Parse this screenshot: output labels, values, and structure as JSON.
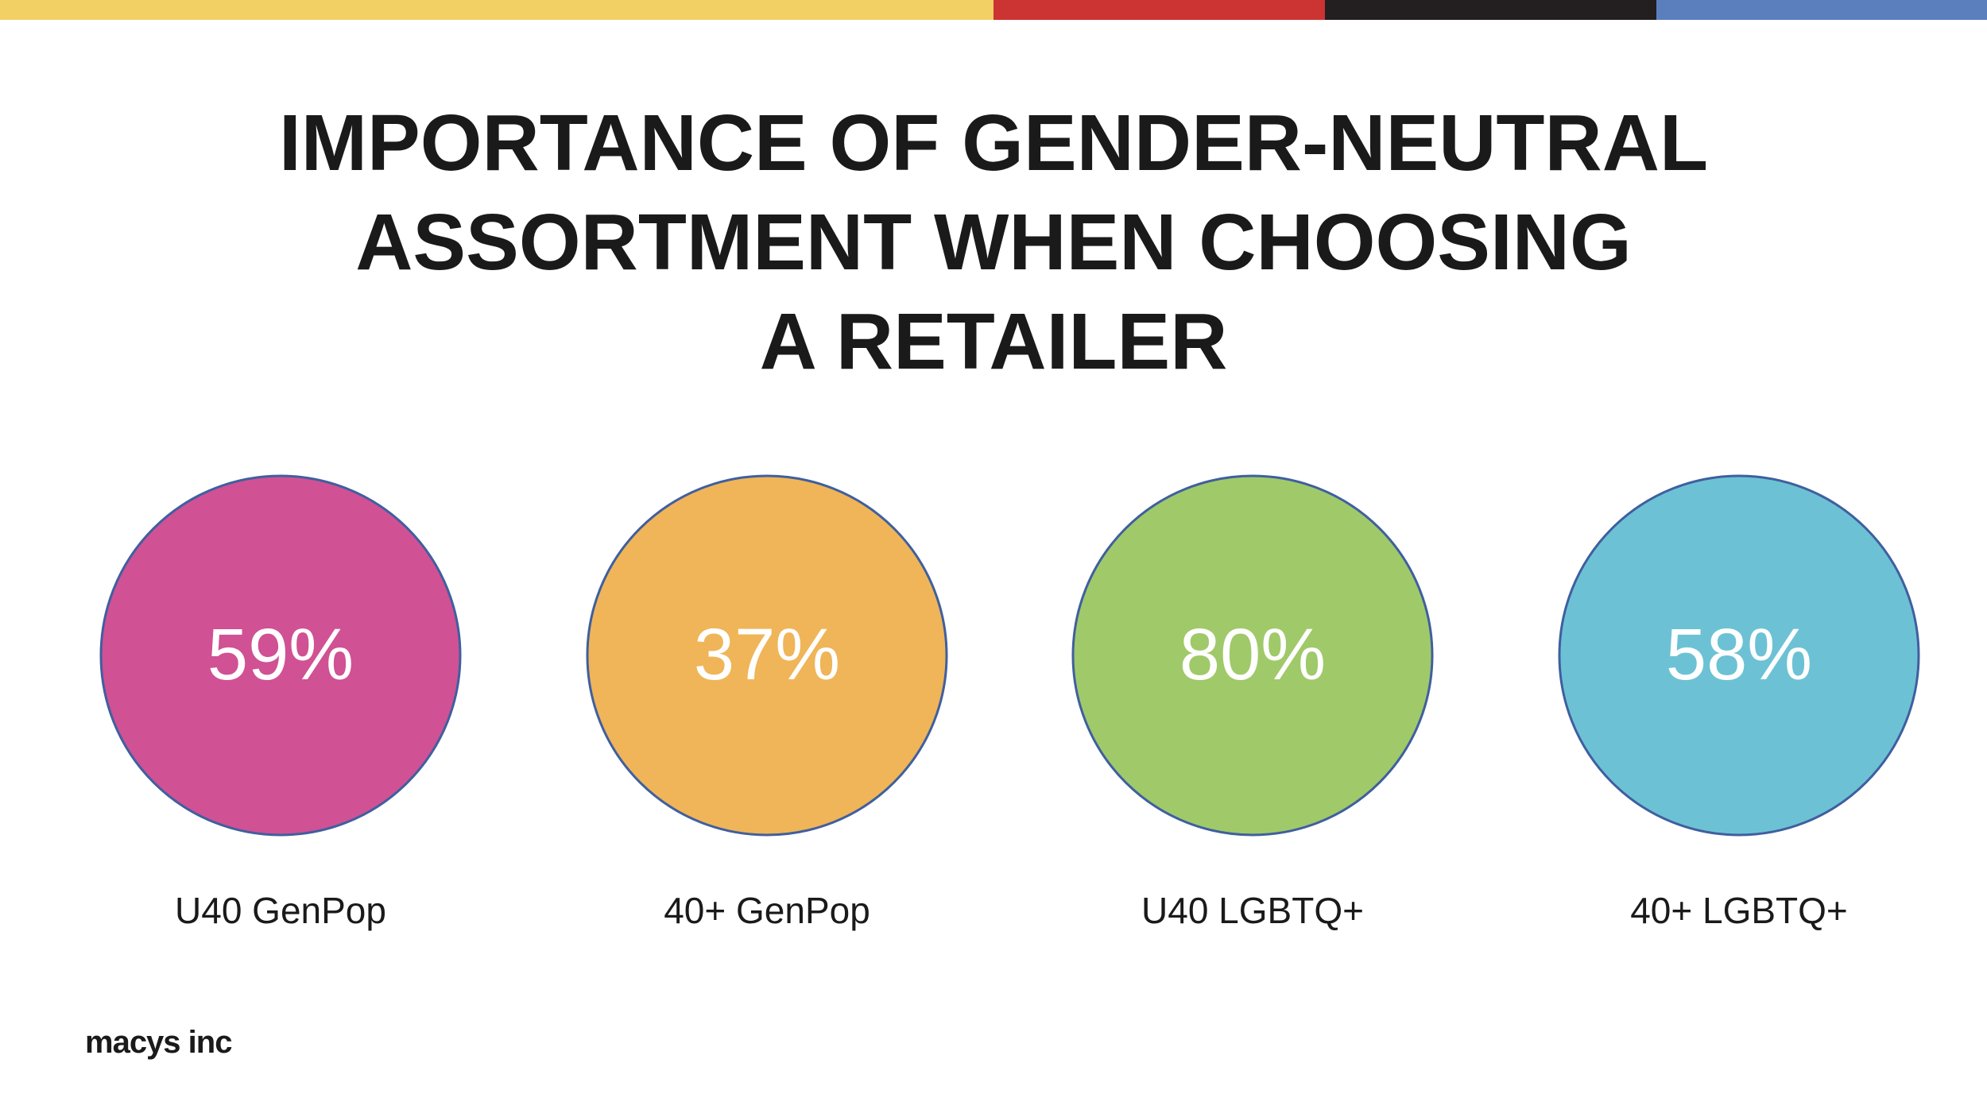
{
  "header": {
    "title": "IMPORTANCE OF GENDER-NEUTRAL\nASSORTMENT WHEN CHOOSING\nA RETAILER",
    "stripe_colors": [
      "#f3d064",
      "#cc3333",
      "#231f20",
      "#5b7fbd"
    ]
  },
  "chart_data": {
    "type": "bubble",
    "title": "IMPORTANCE OF GENDER-NEUTRAL ASSORTMENT WHEN CHOOSING A RETAILER",
    "categories": [
      "U40 GenPop",
      "40+ GenPop",
      "U40 LGBTQ+",
      "40+ LGBTQ+"
    ],
    "values": [
      59,
      37,
      80,
      58
    ],
    "value_labels": [
      "59%",
      "37%",
      "80%",
      "58%"
    ],
    "unit": "%",
    "colors": [
      "#d05194",
      "#efb558",
      "#a0c96a",
      "#6cc2d4"
    ],
    "outline_color": "#3f5f9f",
    "legend": "none",
    "grid": false
  },
  "footer": {
    "logo_text": "macys inc"
  }
}
